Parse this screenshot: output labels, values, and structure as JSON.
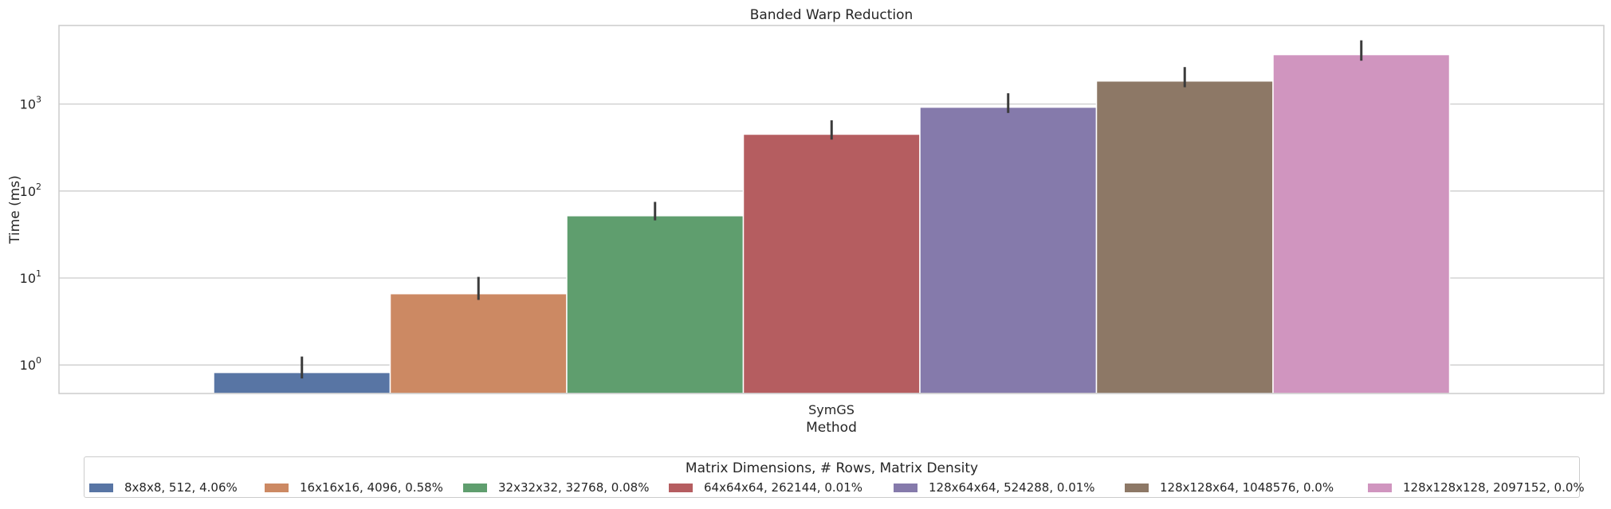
{
  "chart_data": {
    "type": "bar",
    "title": "Banded Warp Reduction",
    "xlabel": "Method",
    "ylabel": "Time (ms)",
    "yscale": "log",
    "ylim": [
      0.47,
      8000
    ],
    "yticks": [
      {
        "base": "10",
        "exp": "0",
        "value": 1
      },
      {
        "base": "10",
        "exp": "1",
        "value": 10
      },
      {
        "base": "10",
        "exp": "2",
        "value": 100
      },
      {
        "base": "10",
        "exp": "3",
        "value": 1000
      }
    ],
    "categories": [
      "SymGS"
    ],
    "legend_title": "Matrix Dimensions, # Rows, Matrix Density",
    "legend_position": "bottom-center",
    "grid": "y",
    "series": [
      {
        "name": "8x8x8, 512, 4.06%",
        "color": "#5875a4",
        "values": [
          0.82
        ],
        "err": [
          [
            0.7,
            1.25
          ]
        ]
      },
      {
        "name": "16x16x16, 4096, 0.58%",
        "color": "#cc8963",
        "values": [
          6.6
        ],
        "err": [
          [
            5.6,
            10.3
          ]
        ]
      },
      {
        "name": "32x32x32, 32768, 0.08%",
        "color": "#5f9e6e",
        "values": [
          52
        ],
        "err": [
          [
            46,
            75
          ]
        ]
      },
      {
        "name": "64x64x64, 262144, 0.01%",
        "color": "#b55d60",
        "values": [
          450
        ],
        "err": [
          [
            390,
            650
          ]
        ]
      },
      {
        "name": "128x64x64, 524288, 0.01%",
        "color": "#857aab",
        "values": [
          920
        ],
        "err": [
          [
            790,
            1330
          ]
        ]
      },
      {
        "name": "128x128x64, 1048576, 0.0%",
        "color": "#8d7866",
        "values": [
          1840
        ],
        "err": [
          [
            1560,
            2660
          ]
        ]
      },
      {
        "name": "128x128x128, 2097152, 0.0%",
        "color": "#d095bf",
        "values": [
          3700
        ],
        "err": [
          [
            3150,
            5400
          ]
        ]
      }
    ]
  }
}
